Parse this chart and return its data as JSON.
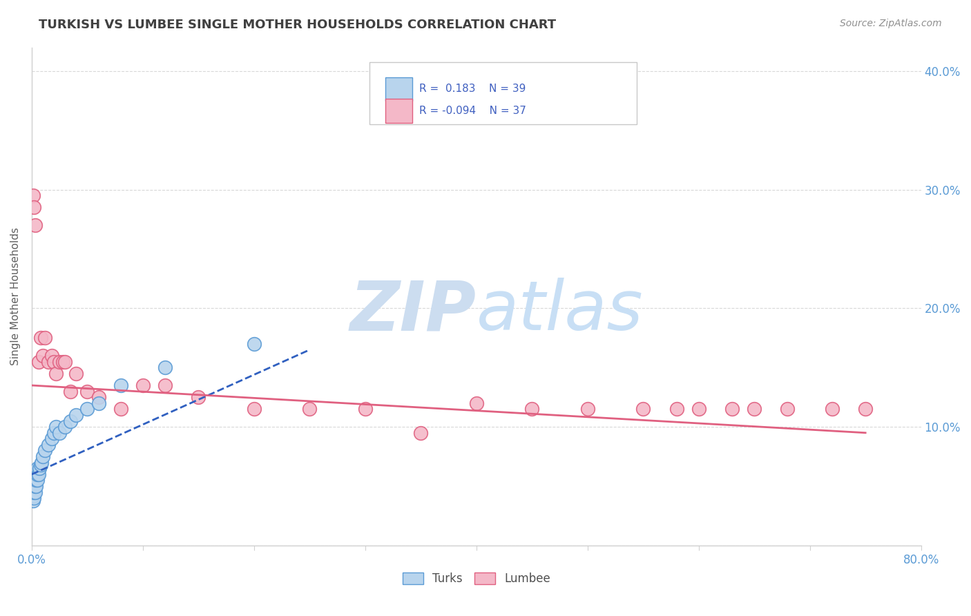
{
  "title": "TURKISH VS LUMBEE SINGLE MOTHER HOUSEHOLDS CORRELATION CHART",
  "source": "Source: ZipAtlas.com",
  "ylabel": "Single Mother Households",
  "xlim": [
    0.0,
    0.8
  ],
  "ylim": [
    0.0,
    0.42
  ],
  "yticks": [
    0.0,
    0.1,
    0.2,
    0.3,
    0.4
  ],
  "ytick_labels": [
    "",
    "10.0%",
    "20.0%",
    "30.0%",
    "40.0%"
  ],
  "xtick_positions": [
    0.0,
    0.1,
    0.2,
    0.3,
    0.4,
    0.5,
    0.6,
    0.7,
    0.8
  ],
  "turks_color": "#b8d4ed",
  "turks_edge": "#5b9bd5",
  "lumbee_color": "#f4b8c8",
  "lumbee_edge": "#e06080",
  "trend_turks_color": "#3060c0",
  "trend_lumbee_color": "#e06080",
  "label_color": "#5b9bd5",
  "title_color": "#404040",
  "source_color": "#909090",
  "axis_color": "#d0d0d0",
  "grid_color": "#d8d8d8",
  "watermark_color": "#ccddf0",
  "background_color": "#ffffff",
  "turks_x": [
    0.001,
    0.001,
    0.001,
    0.001,
    0.001,
    0.002,
    0.002,
    0.002,
    0.002,
    0.002,
    0.003,
    0.003,
    0.003,
    0.003,
    0.004,
    0.004,
    0.004,
    0.005,
    0.005,
    0.005,
    0.006,
    0.007,
    0.008,
    0.009,
    0.01,
    0.012,
    0.015,
    0.018,
    0.02,
    0.022,
    0.025,
    0.03,
    0.035,
    0.04,
    0.05,
    0.06,
    0.08,
    0.12,
    0.2
  ],
  "turks_y": [
    0.038,
    0.042,
    0.045,
    0.05,
    0.055,
    0.04,
    0.045,
    0.05,
    0.055,
    0.06,
    0.045,
    0.05,
    0.055,
    0.06,
    0.05,
    0.055,
    0.06,
    0.055,
    0.06,
    0.065,
    0.06,
    0.065,
    0.068,
    0.07,
    0.075,
    0.08,
    0.085,
    0.09,
    0.095,
    0.1,
    0.095,
    0.1,
    0.105,
    0.11,
    0.115,
    0.12,
    0.135,
    0.15,
    0.17
  ],
  "lumbee_x": [
    0.001,
    0.002,
    0.003,
    0.006,
    0.008,
    0.01,
    0.012,
    0.015,
    0.018,
    0.02,
    0.022,
    0.025,
    0.028,
    0.03,
    0.035,
    0.04,
    0.05,
    0.06,
    0.08,
    0.1,
    0.12,
    0.15,
    0.2,
    0.25,
    0.3,
    0.35,
    0.4,
    0.45,
    0.5,
    0.55,
    0.58,
    0.6,
    0.63,
    0.65,
    0.68,
    0.72,
    0.75
  ],
  "lumbee_y": [
    0.295,
    0.285,
    0.27,
    0.155,
    0.175,
    0.16,
    0.175,
    0.155,
    0.16,
    0.155,
    0.145,
    0.155,
    0.155,
    0.155,
    0.13,
    0.145,
    0.13,
    0.125,
    0.115,
    0.135,
    0.135,
    0.125,
    0.115,
    0.115,
    0.115,
    0.095,
    0.12,
    0.115,
    0.115,
    0.115,
    0.115,
    0.115,
    0.115,
    0.115,
    0.115,
    0.115,
    0.115
  ],
  "turks_trend_x": [
    0.0,
    0.25
  ],
  "turks_trend_y": [
    0.06,
    0.165
  ],
  "lumbee_trend_x": [
    0.0,
    0.75
  ],
  "lumbee_trend_y": [
    0.135,
    0.095
  ]
}
